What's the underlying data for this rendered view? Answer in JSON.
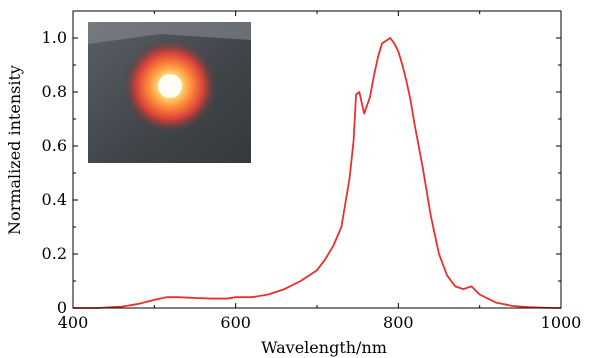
{
  "chart_data": {
    "type": "line",
    "title": "",
    "xlabel": "Wavelength/nm",
    "ylabel": "Normalized intensity",
    "xlim": [
      400,
      1000
    ],
    "ylim": [
      0,
      1.1
    ],
    "xticks": [
      400,
      600,
      800,
      1000
    ],
    "xtick_labels": [
      "400",
      "600",
      "800",
      "1000"
    ],
    "yticks": [
      0,
      0.2,
      0.4,
      0.6,
      0.8,
      1.0
    ],
    "ytick_labels": [
      "0",
      "0.2",
      "0.4",
      "0.6",
      "0.8",
      "1.0"
    ],
    "grid": false,
    "inset": "photo of red-orange glowing emission spot",
    "series": [
      {
        "color": "#e8302c",
        "x": [
          400,
          430,
          460,
          480,
          500,
          515,
          530,
          550,
          570,
          590,
          600,
          620,
          640,
          660,
          680,
          700,
          710,
          720,
          730,
          740,
          745,
          748,
          752,
          758,
          765,
          770,
          775,
          780,
          785,
          790,
          795,
          800,
          805,
          810,
          815,
          820,
          830,
          840,
          850,
          860,
          870,
          880,
          890,
          900,
          920,
          940,
          960,
          980,
          1000
        ],
        "y": [
          0.0,
          0.0,
          0.005,
          0.015,
          0.03,
          0.04,
          0.04,
          0.037,
          0.035,
          0.035,
          0.04,
          0.04,
          0.05,
          0.07,
          0.1,
          0.14,
          0.18,
          0.23,
          0.3,
          0.48,
          0.62,
          0.79,
          0.8,
          0.72,
          0.78,
          0.86,
          0.93,
          0.98,
          0.99,
          1.0,
          0.98,
          0.95,
          0.9,
          0.84,
          0.77,
          0.68,
          0.52,
          0.34,
          0.2,
          0.12,
          0.08,
          0.07,
          0.08,
          0.05,
          0.02,
          0.008,
          0.003,
          0.001,
          0.0
        ]
      }
    ]
  }
}
